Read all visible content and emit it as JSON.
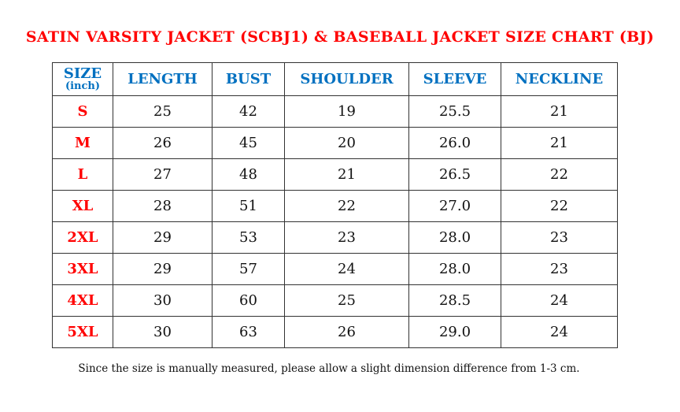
{
  "title": "SATIN VARSITY JACKET (SCBJ1) & BASEBALL JACKET SIZE CHART (BJ)",
  "headers": {
    "size": "SIZE",
    "unit": "(inch)",
    "length": "LENGTH",
    "bust": "BUST",
    "shoulder": "SHOULDER",
    "sleeve": "SLEEVE",
    "neckline": "NECKLINE"
  },
  "rows": [
    [
      "S",
      "25",
      "42",
      "19",
      "25.5",
      "21"
    ],
    [
      "M",
      "26",
      "45",
      "20",
      "26.0",
      "21"
    ],
    [
      "L",
      "27",
      "48",
      "21",
      "26.5",
      "22"
    ],
    [
      "XL",
      "28",
      "51",
      "22",
      "27.0",
      "22"
    ],
    [
      "2XL",
      "29",
      "53",
      "23",
      "28.0",
      "23"
    ],
    [
      "3XL",
      "29",
      "57",
      "24",
      "28.0",
      "23"
    ],
    [
      "4XL",
      "30",
      "60",
      "25",
      "28.5",
      "24"
    ],
    [
      "5XL",
      "30",
      "63",
      "26",
      "29.0",
      "24"
    ]
  ],
  "note": "Since the size is manually measured, please allow a slight dimension difference from 1-3 cm.",
  "colors": {
    "title": "#ff0000",
    "header": "#0070c0",
    "size": "#ff0000"
  }
}
